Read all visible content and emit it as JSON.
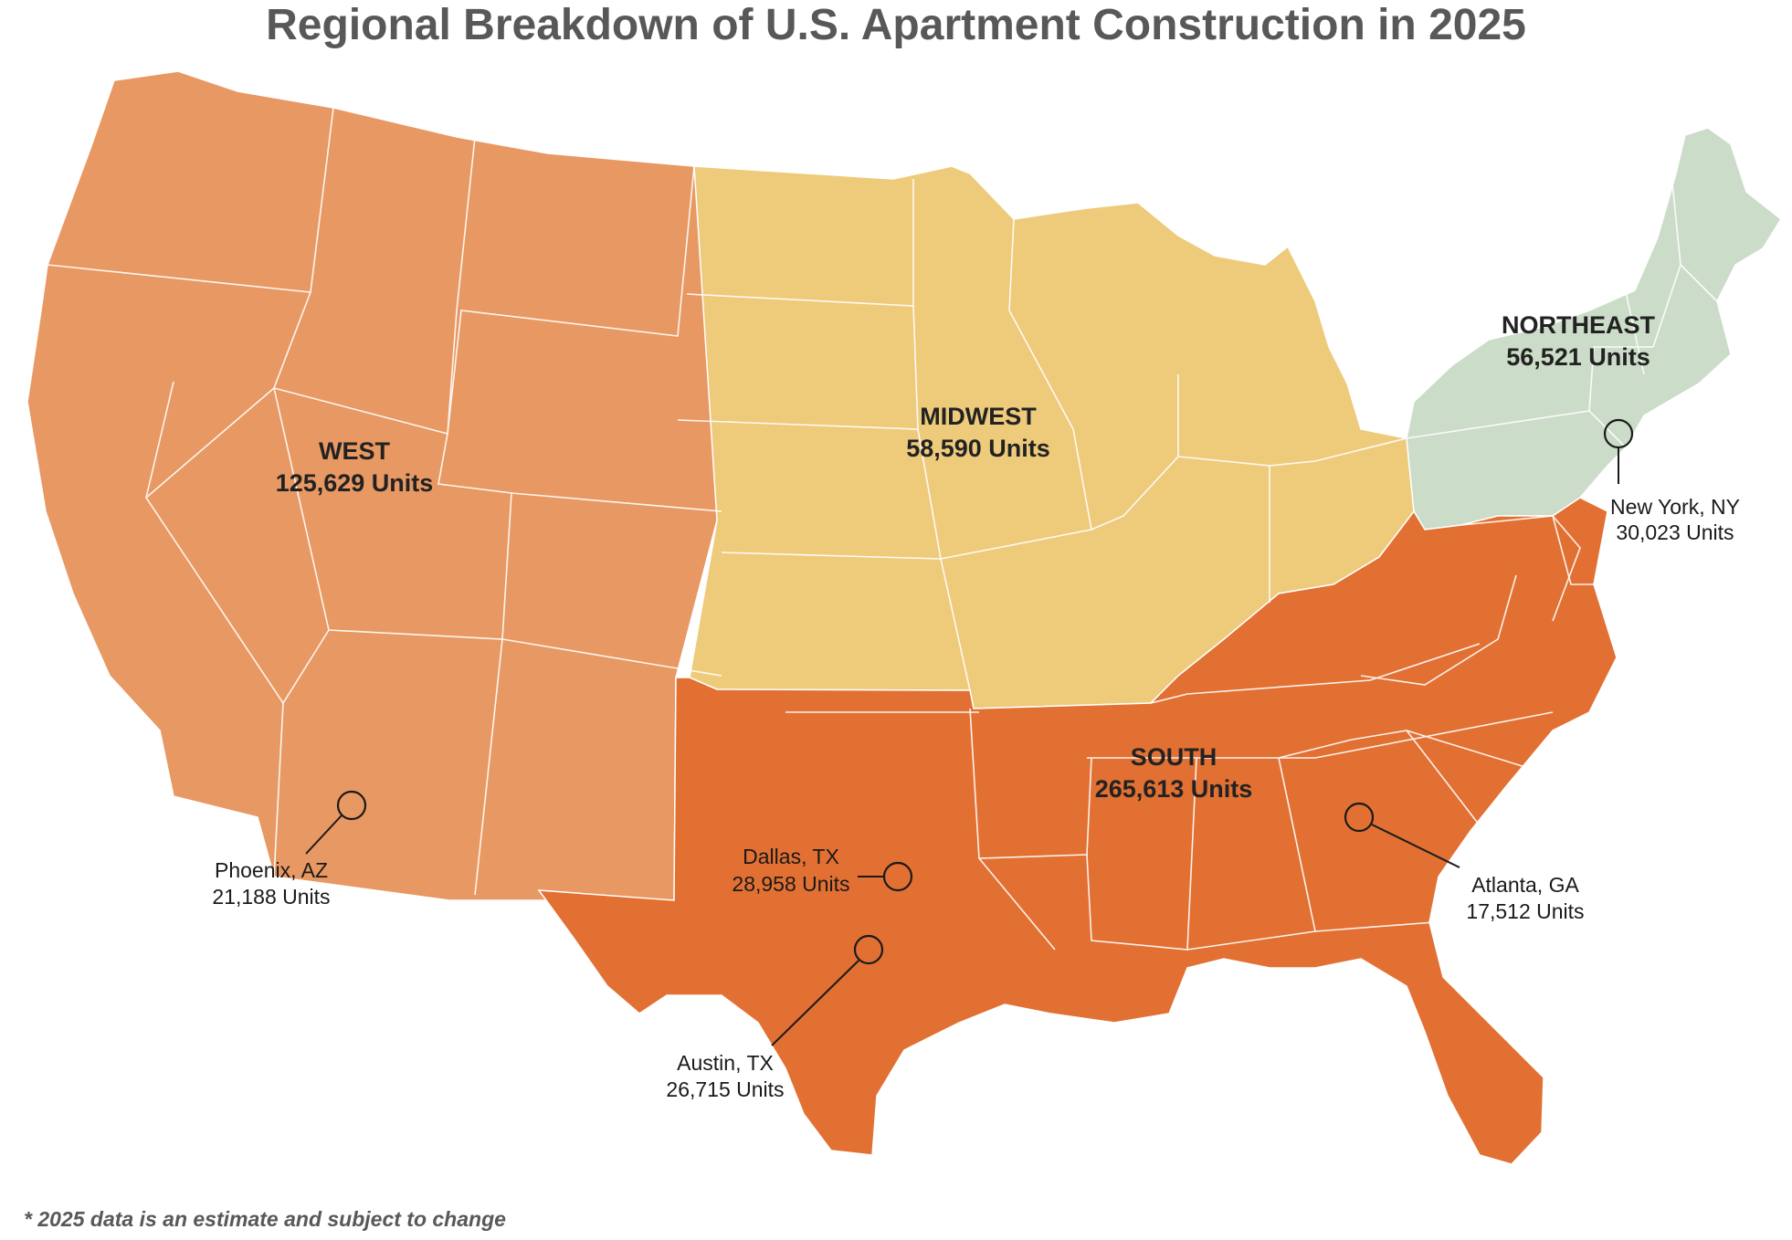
{
  "title": "Regional Breakdown of U.S. Apartment Construction in 2025",
  "footnote": "* 2025 data is an estimate and subject to change",
  "colors": {
    "west": "#e89862",
    "midwest": "#eeca7b",
    "northeast": "#cbdcc8",
    "south": "#e27033",
    "border": "#ffffff"
  },
  "regions": {
    "west": {
      "name": "WEST",
      "units": "125,629 Units"
    },
    "midwest": {
      "name": "MIDWEST",
      "units": "58,590 Units"
    },
    "northeast": {
      "name": "NORTHEAST",
      "units": "56,521 Units"
    },
    "south": {
      "name": "SOUTH",
      "units": "265,613 Units"
    }
  },
  "cities": {
    "new_york": {
      "name": "New York, NY",
      "units": "30,023 Units"
    },
    "phoenix": {
      "name": "Phoenix, AZ",
      "units": "21,188 Units"
    },
    "dallas": {
      "name": "Dallas, TX",
      "units": "28,958 Units"
    },
    "austin": {
      "name": "Austin, TX",
      "units": "26,715 Units"
    },
    "atlanta": {
      "name": "Atlanta, GA",
      "units": "17,512 Units"
    }
  }
}
